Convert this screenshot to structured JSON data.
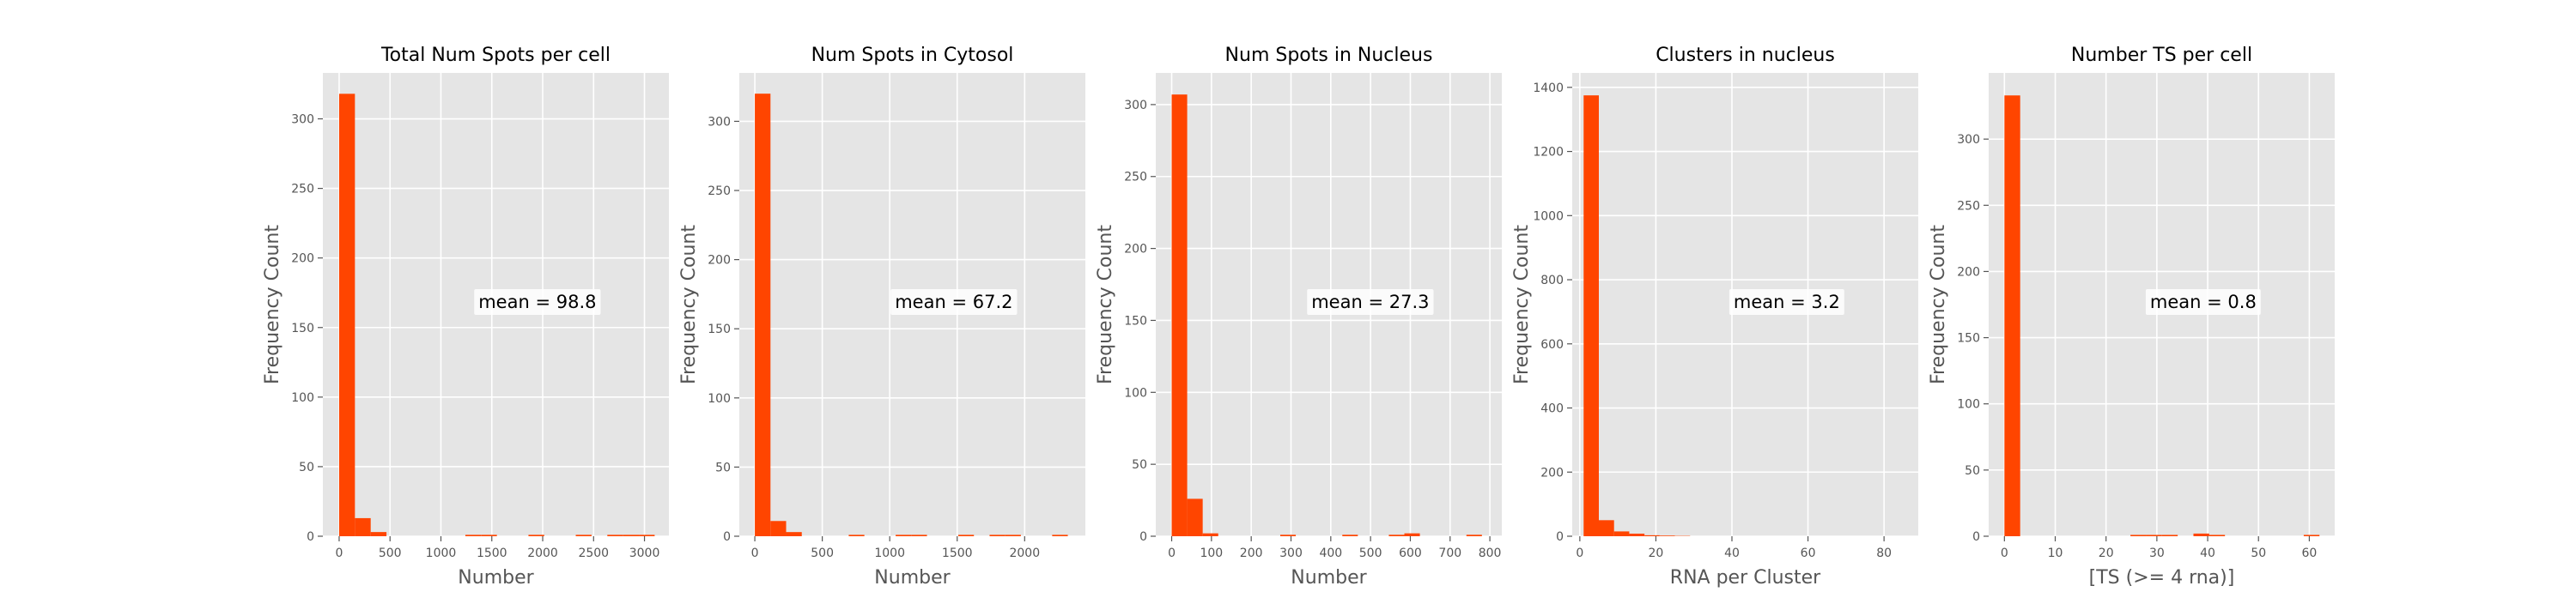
{
  "colors": {
    "bar": "#FF4500",
    "panel_bg": "#E5E5E5",
    "grid": "#FFFFFF",
    "text": "#000000",
    "tick_text": "#555555",
    "label_text": "#555555"
  },
  "chart_data": [
    {
      "type": "bar",
      "title": "Total Num Spots per cell",
      "xlabel": "Number",
      "ylabel": "Frequency Count",
      "annotation": "mean = 98.8",
      "xlim": [
        -160,
        3240
      ],
      "ylim": [
        0,
        333
      ],
      "xticks": [
        0,
        500,
        1000,
        1500,
        2000,
        2500,
        3000
      ],
      "yticks": [
        0,
        50,
        100,
        150,
        200,
        250,
        300
      ],
      "bin_width": 155,
      "bins": [
        {
          "x": 0,
          "y": 318
        },
        {
          "x": 155,
          "y": 13
        },
        {
          "x": 310,
          "y": 3
        },
        {
          "x": 1240,
          "y": 1
        },
        {
          "x": 1395,
          "y": 1
        },
        {
          "x": 1860,
          "y": 1
        },
        {
          "x": 2325,
          "y": 1
        },
        {
          "x": 2635,
          "y": 1
        },
        {
          "x": 2790,
          "y": 1
        },
        {
          "x": 2945,
          "y": 1
        }
      ]
    },
    {
      "type": "bar",
      "title": "Num Spots in Cytosol",
      "xlabel": "Number",
      "ylabel": "Frequency Count",
      "annotation": "mean = 67.2",
      "xlim": [
        -115,
        2450
      ],
      "ylim": [
        0,
        335
      ],
      "xticks": [
        0,
        500,
        1000,
        1500,
        2000
      ],
      "yticks": [
        0,
        50,
        100,
        150,
        200,
        250,
        300
      ],
      "bin_width": 116,
      "bins": [
        {
          "x": 0,
          "y": 320
        },
        {
          "x": 116,
          "y": 11
        },
        {
          "x": 232,
          "y": 3
        },
        {
          "x": 696,
          "y": 1
        },
        {
          "x": 1044,
          "y": 1
        },
        {
          "x": 1160,
          "y": 1
        },
        {
          "x": 1508,
          "y": 1
        },
        {
          "x": 1740,
          "y": 1
        },
        {
          "x": 1856,
          "y": 1
        },
        {
          "x": 2204,
          "y": 1
        }
      ]
    },
    {
      "type": "bar",
      "title": "Num Spots in Nucleus",
      "xlabel": "Number",
      "ylabel": "Frequency Count",
      "annotation": "mean = 27.3",
      "xlim": [
        -40,
        830
      ],
      "ylim": [
        0,
        322
      ],
      "xticks": [
        0,
        100,
        200,
        300,
        400,
        500,
        600,
        700,
        800
      ],
      "yticks": [
        0,
        50,
        100,
        150,
        200,
        250,
        300
      ],
      "bin_width": 39,
      "bins": [
        {
          "x": 0,
          "y": 307
        },
        {
          "x": 39,
          "y": 26
        },
        {
          "x": 78,
          "y": 2
        },
        {
          "x": 273,
          "y": 1
        },
        {
          "x": 429,
          "y": 1
        },
        {
          "x": 546,
          "y": 1
        },
        {
          "x": 585,
          "y": 2
        },
        {
          "x": 741,
          "y": 1
        }
      ]
    },
    {
      "type": "bar",
      "title": "Clusters in nucleus",
      "xlabel": "RNA per Cluster",
      "ylabel": "Frequency Count",
      "annotation": "mean = 3.2",
      "xlim": [
        -2,
        89
      ],
      "ylim": [
        0,
        1445
      ],
      "xticks": [
        0,
        20,
        40,
        60,
        80
      ],
      "yticks": [
        0,
        200,
        400,
        600,
        800,
        1000,
        1200,
        1400
      ],
      "bin_width": 4,
      "bins": [
        {
          "x": 1,
          "y": 1375
        },
        {
          "x": 5,
          "y": 50
        },
        {
          "x": 9,
          "y": 15
        },
        {
          "x": 13,
          "y": 8
        },
        {
          "x": 17,
          "y": 3
        },
        {
          "x": 21,
          "y": 2
        },
        {
          "x": 25,
          "y": 1
        }
      ]
    },
    {
      "type": "bar",
      "title": "Number TS per cell",
      "xlabel": "[TS (>= 4 rna)]",
      "ylabel": "Frequency Count",
      "annotation": "mean = 0.8",
      "xlim": [
        -3.1,
        65
      ],
      "ylim": [
        0,
        350
      ],
      "xticks": [
        0,
        10,
        20,
        30,
        40,
        50,
        60
      ],
      "yticks": [
        0,
        50,
        100,
        150,
        200,
        250,
        300
      ],
      "bin_width": 3.1,
      "bins": [
        {
          "x": 0,
          "y": 333
        },
        {
          "x": 24.8,
          "y": 1
        },
        {
          "x": 27.9,
          "y": 1
        },
        {
          "x": 31,
          "y": 1
        },
        {
          "x": 37.2,
          "y": 2
        },
        {
          "x": 40.3,
          "y": 1
        },
        {
          "x": 58.9,
          "y": 1
        }
      ]
    }
  ]
}
